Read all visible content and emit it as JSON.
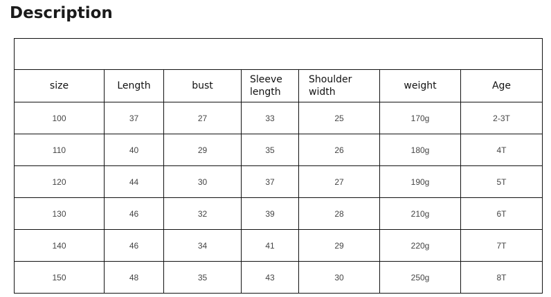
{
  "title": "Description",
  "table": {
    "headers": [
      "size",
      "Length",
      "bust",
      "Sleeve length",
      "Shoulder width",
      "weight",
      "Age"
    ],
    "rows": [
      [
        "100",
        "37",
        "27",
        "33",
        "25",
        "170g",
        "2-3T"
      ],
      [
        "110",
        "40",
        "29",
        "35",
        "26",
        "180g",
        "4T"
      ],
      [
        "120",
        "44",
        "30",
        "37",
        "27",
        "190g",
        "5T"
      ],
      [
        "130",
        "46",
        "32",
        "39",
        "28",
        "210g",
        "6T"
      ],
      [
        "140",
        "46",
        "34",
        "41",
        "29",
        "220g",
        "7T"
      ],
      [
        "150",
        "48",
        "35",
        "43",
        "30",
        "250g",
        "8T"
      ]
    ]
  }
}
